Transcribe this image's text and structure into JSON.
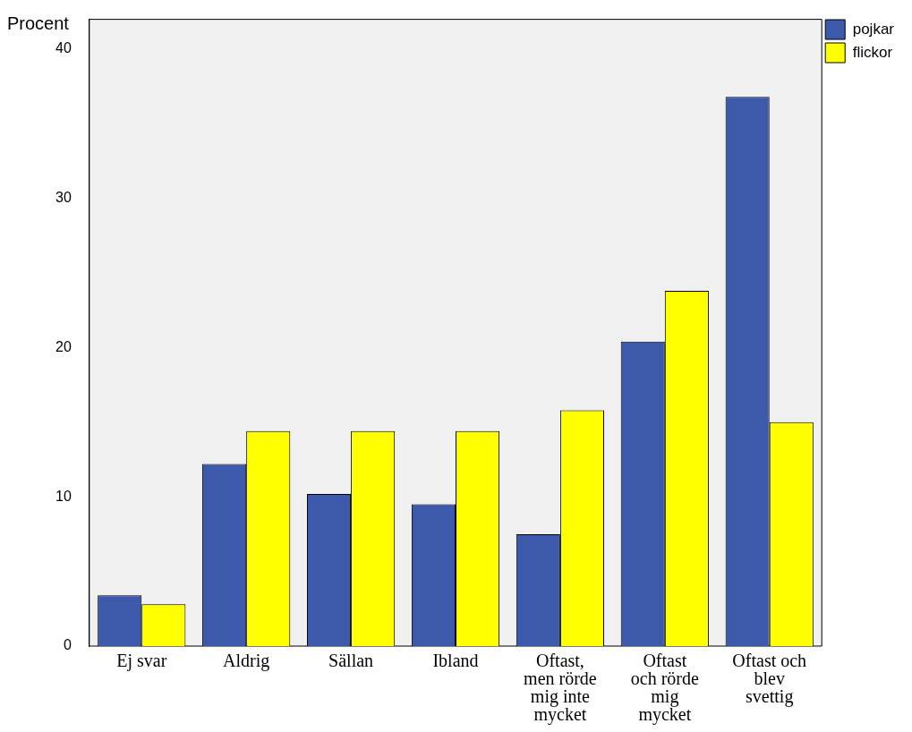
{
  "chart_data": {
    "type": "bar",
    "ylabel": "Procent",
    "categories": [
      "Ej svar",
      "Aldrig",
      "Sällan",
      "Ibland",
      "Oftast,\nmen rörde\nmig inte\nmycket",
      "Oftast\noch rörde\nmig\nmycket",
      "Oftast och\nblev\nsvettig"
    ],
    "series": [
      {
        "name": "pojkar",
        "color": "#3d59ab",
        "values": [
          3.4,
          12.2,
          10.2,
          9.5,
          7.5,
          20.4,
          36.8
        ]
      },
      {
        "name": "flickor",
        "color": "#ffff00",
        "values": [
          2.8,
          14.4,
          14.4,
          14.4,
          15.8,
          23.8,
          15.0
        ]
      }
    ],
    "ylim": [
      0,
      42
    ],
    "yticks": [
      0,
      10,
      20,
      30,
      40
    ],
    "grid": false,
    "legend": "top right"
  }
}
